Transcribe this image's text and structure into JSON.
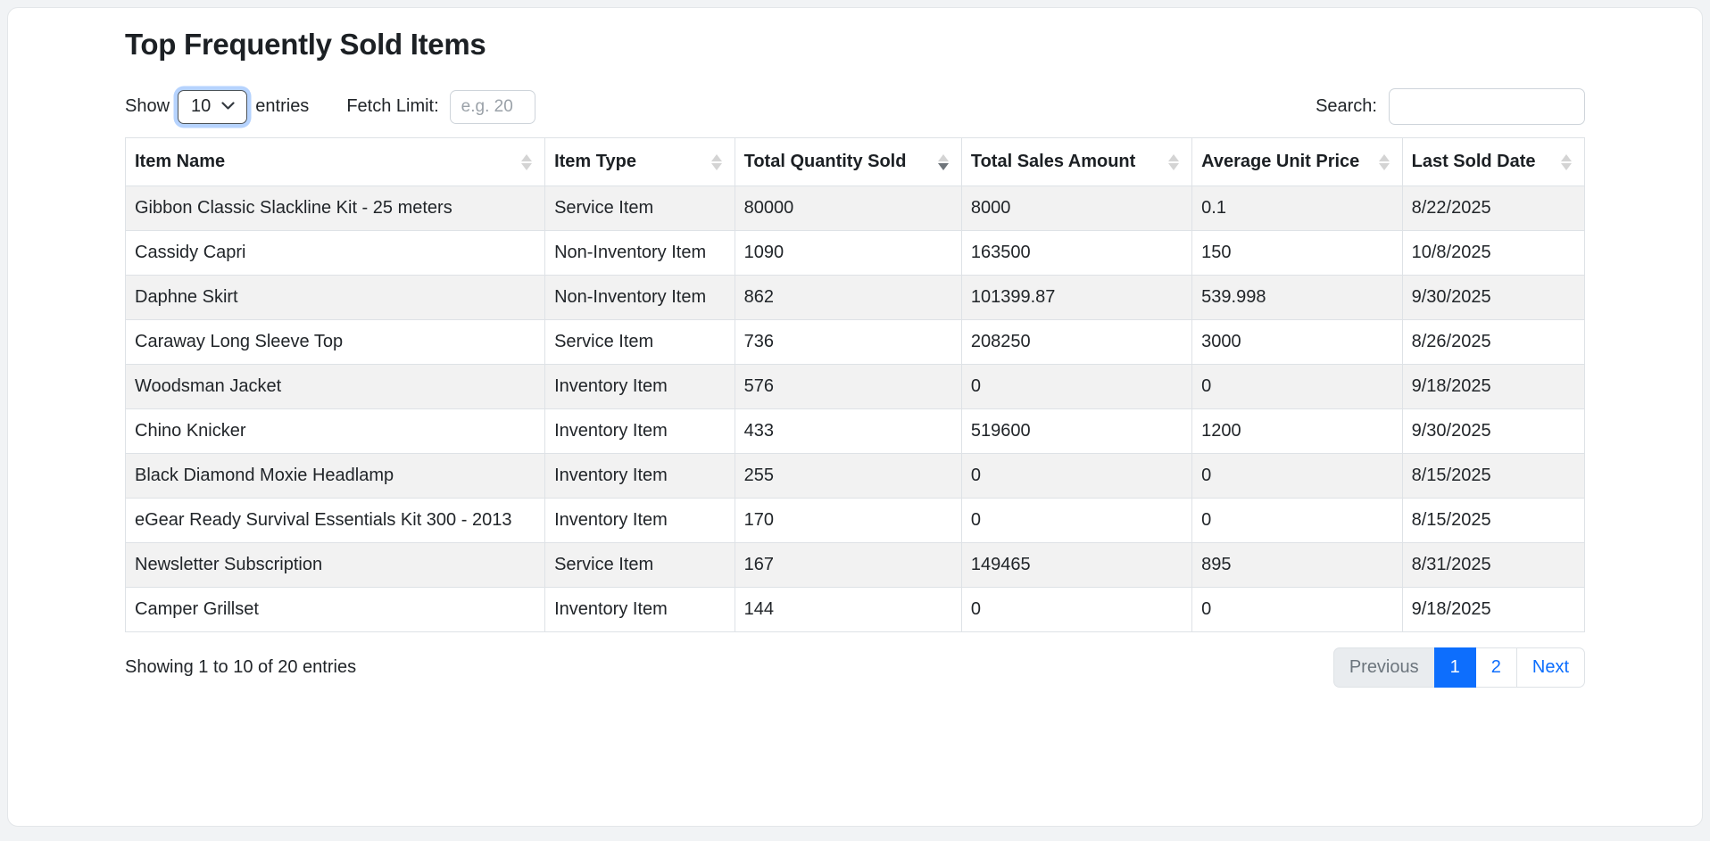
{
  "page": {
    "title": "Top Frequently Sold Items"
  },
  "controls": {
    "show_label": "Show",
    "page_size": "10",
    "entries_label": "entries",
    "fetch_limit_label": "Fetch Limit:",
    "fetch_limit_placeholder": "e.g. 20",
    "fetch_limit_value": "",
    "search_label": "Search:",
    "search_value": ""
  },
  "table": {
    "columns": [
      {
        "label": "Item Name",
        "sort": "none",
        "width": "28.75%"
      },
      {
        "label": "Item Type",
        "sort": "none",
        "width": "13.0%"
      },
      {
        "label": "Total Quantity Sold",
        "sort": "desc",
        "width": "15.55%"
      },
      {
        "label": "Total Sales Amount",
        "sort": "none",
        "width": "15.8%"
      },
      {
        "label": "Average Unit Price",
        "sort": "none",
        "width": "14.4%"
      },
      {
        "label": "Last Sold Date",
        "sort": "none",
        "width": "12.5%"
      }
    ],
    "rows": [
      [
        "Gibbon Classic Slackline Kit - 25 meters",
        "Service Item",
        "80000",
        "8000",
        "0.1",
        "8/22/2025"
      ],
      [
        "Cassidy Capri",
        "Non-Inventory Item",
        "1090",
        "163500",
        "150",
        "10/8/2025"
      ],
      [
        "Daphne Skirt",
        "Non-Inventory Item",
        "862",
        "101399.87",
        "539.998",
        "9/30/2025"
      ],
      [
        "Caraway Long Sleeve Top",
        "Service Item",
        "736",
        "208250",
        "3000",
        "8/26/2025"
      ],
      [
        "Woodsman Jacket",
        "Inventory Item",
        "576",
        "0",
        "0",
        "9/18/2025"
      ],
      [
        "Chino Knicker",
        "Inventory Item",
        "433",
        "519600",
        "1200",
        "9/30/2025"
      ],
      [
        "Black Diamond Moxie Headlamp",
        "Inventory Item",
        "255",
        "0",
        "0",
        "8/15/2025"
      ],
      [
        "eGear Ready Survival Essentials Kit 300 - 2013",
        "Inventory Item",
        "170",
        "0",
        "0",
        "8/15/2025"
      ],
      [
        "Newsletter Subscription",
        "Service Item",
        "167",
        "149465",
        "895",
        "8/31/2025"
      ],
      [
        "Camper Grillset",
        "Inventory Item",
        "144",
        "0",
        "0",
        "9/18/2025"
      ]
    ]
  },
  "footer": {
    "info": "Showing 1 to 10 of 20 entries",
    "pagination": [
      {
        "label": "Previous",
        "state": "disabled"
      },
      {
        "label": "1",
        "state": "active"
      },
      {
        "label": "2",
        "state": "normal"
      },
      {
        "label": "Next",
        "state": "normal"
      }
    ]
  },
  "colors": {
    "accent": "#0d6efd",
    "stripe": "#f2f2f2",
    "border": "#dee2e6",
    "focus_ring": "rgba(13,110,253,0.3)"
  }
}
